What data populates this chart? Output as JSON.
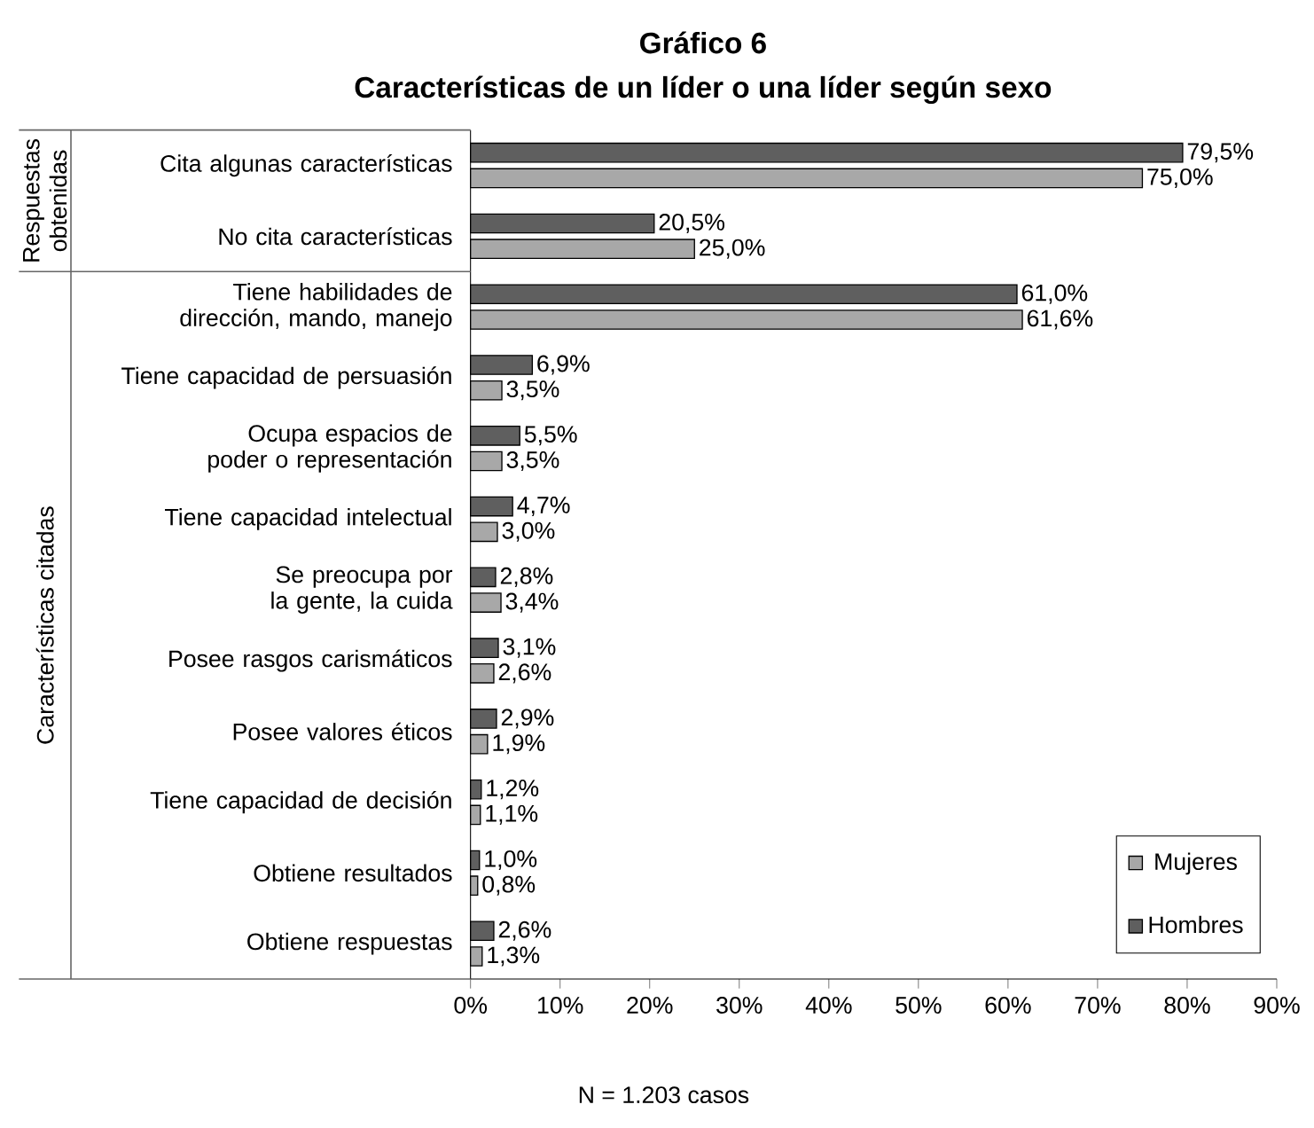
{
  "chart_data": {
    "type": "bar",
    "orientation": "horizontal",
    "title": "Gráfico 6",
    "subtitle": "Características de un líder o una líder según sexo",
    "categories": [
      "Cita algunas características",
      "No cita características",
      "Tiene habilidades de dirección, mando, manejo",
      "Tiene capacidad de persuasión",
      "Ocupa espacios de poder o representación",
      "Tiene capacidad intelectual",
      "Se preocupa por la gente, la cuida",
      "Posee rasgos carismáticos",
      "Posee valores éticos",
      "Tiene capacidad de decisión",
      "Obtiene resultados",
      "Obtiene respuestas"
    ],
    "series": [
      {
        "name": "Hombres",
        "color": "#5f5f5f",
        "values": [
          79.5,
          20.5,
          61.0,
          6.9,
          5.5,
          4.7,
          2.8,
          3.1,
          2.9,
          1.2,
          1.0,
          2.6
        ],
        "value_labels": [
          "79,5%",
          "20,5%",
          "61,0%",
          "6,9%",
          "5,5%",
          "4,7%",
          "2,8%",
          "3,1%",
          "2,9%",
          "1,2%",
          "1,0%",
          "2,6%"
        ]
      },
      {
        "name": "Mujeres",
        "color": "#a8a8a8",
        "values": [
          75.0,
          25.0,
          61.6,
          3.5,
          3.5,
          3.0,
          3.4,
          2.6,
          1.9,
          1.1,
          0.8,
          1.3
        ],
        "value_labels": [
          "75,0%",
          "25,0%",
          "61,6%",
          "3,5%",
          "3,5%",
          "3,0%",
          "3,4%",
          "2,6%",
          "1,9%",
          "1,1%",
          "0,8%",
          "1,3%"
        ]
      }
    ],
    "xlim": [
      0,
      90
    ],
    "xticks": [
      {
        "value": 0,
        "label": "0%"
      },
      {
        "value": 10,
        "label": "10%"
      },
      {
        "value": 20,
        "label": "20%"
      },
      {
        "value": 30,
        "label": "30%"
      },
      {
        "value": 40,
        "label": "40%"
      },
      {
        "value": 50,
        "label": "50%"
      },
      {
        "value": 60,
        "label": "60%"
      },
      {
        "value": 70,
        "label": "70%"
      },
      {
        "value": 80,
        "label": "80%"
      },
      {
        "value": 90,
        "label": "90%"
      }
    ],
    "legend": "bottom right",
    "grid": false,
    "annotations": [
      "Respuestas obtenidas",
      "Características citadas",
      "N = 1.203 casos"
    ]
  }
}
